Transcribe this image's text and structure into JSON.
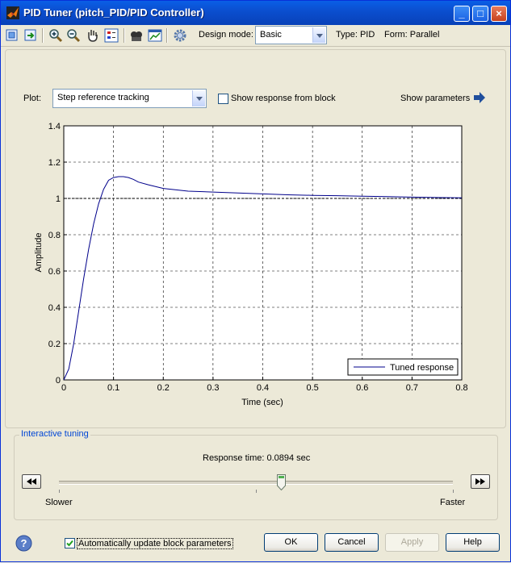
{
  "window": {
    "title": "PID Tuner (pitch_PID/PID Controller)"
  },
  "toolbar": {
    "design_mode_label": "Design mode:",
    "design_mode_value": "Basic",
    "type_text": "Type: PID",
    "form_text": "Form: Parallel"
  },
  "plot_controls": {
    "plot_label": "Plot:",
    "plot_value": "Step reference tracking",
    "show_response_label": "Show response from block",
    "show_parameters_label": "Show parameters"
  },
  "chart_data": {
    "type": "line",
    "xlabel": "Time (sec)",
    "ylabel": "Amplitude",
    "xlim": [
      0,
      0.8
    ],
    "ylim": [
      0,
      1.4
    ],
    "xticks": [
      "0",
      "0.1",
      "0.2",
      "0.3",
      "0.4",
      "0.5",
      "0.6",
      "0.7",
      "0.8"
    ],
    "yticks": [
      "0",
      "0.2",
      "0.4",
      "0.6",
      "0.8",
      "1",
      "1.2",
      "1.4"
    ],
    "grid": true,
    "reference_line": 1,
    "legend_position": "bottom-right",
    "series": [
      {
        "name": "Tuned response",
        "color": "#00008b",
        "x": [
          0,
          0.01,
          0.02,
          0.03,
          0.04,
          0.05,
          0.06,
          0.07,
          0.08,
          0.09,
          0.1,
          0.11,
          0.12,
          0.13,
          0.14,
          0.15,
          0.17,
          0.2,
          0.25,
          0.3,
          0.35,
          0.4,
          0.45,
          0.5,
          0.55,
          0.6,
          0.65,
          0.7,
          0.75,
          0.8
        ],
        "y": [
          0,
          0.06,
          0.2,
          0.38,
          0.56,
          0.72,
          0.86,
          0.97,
          1.05,
          1.1,
          1.115,
          1.12,
          1.12,
          1.115,
          1.105,
          1.09,
          1.075,
          1.055,
          1.04,
          1.035,
          1.03,
          1.025,
          1.02,
          1.017,
          1.015,
          1.012,
          1.01,
          1.007,
          1.005,
          1.003
        ]
      }
    ]
  },
  "interactive_tuning": {
    "legend": "Interactive tuning",
    "response_time_text": "Response time: 0.0894 sec",
    "slider_value": 0.565,
    "slower_label": "Slower",
    "faster_label": "Faster"
  },
  "footer": {
    "auto_update_label": "Automatically update block parameters",
    "ok_label": "OK",
    "cancel_label": "Cancel",
    "apply_label": "Apply",
    "help_label": "Help"
  }
}
